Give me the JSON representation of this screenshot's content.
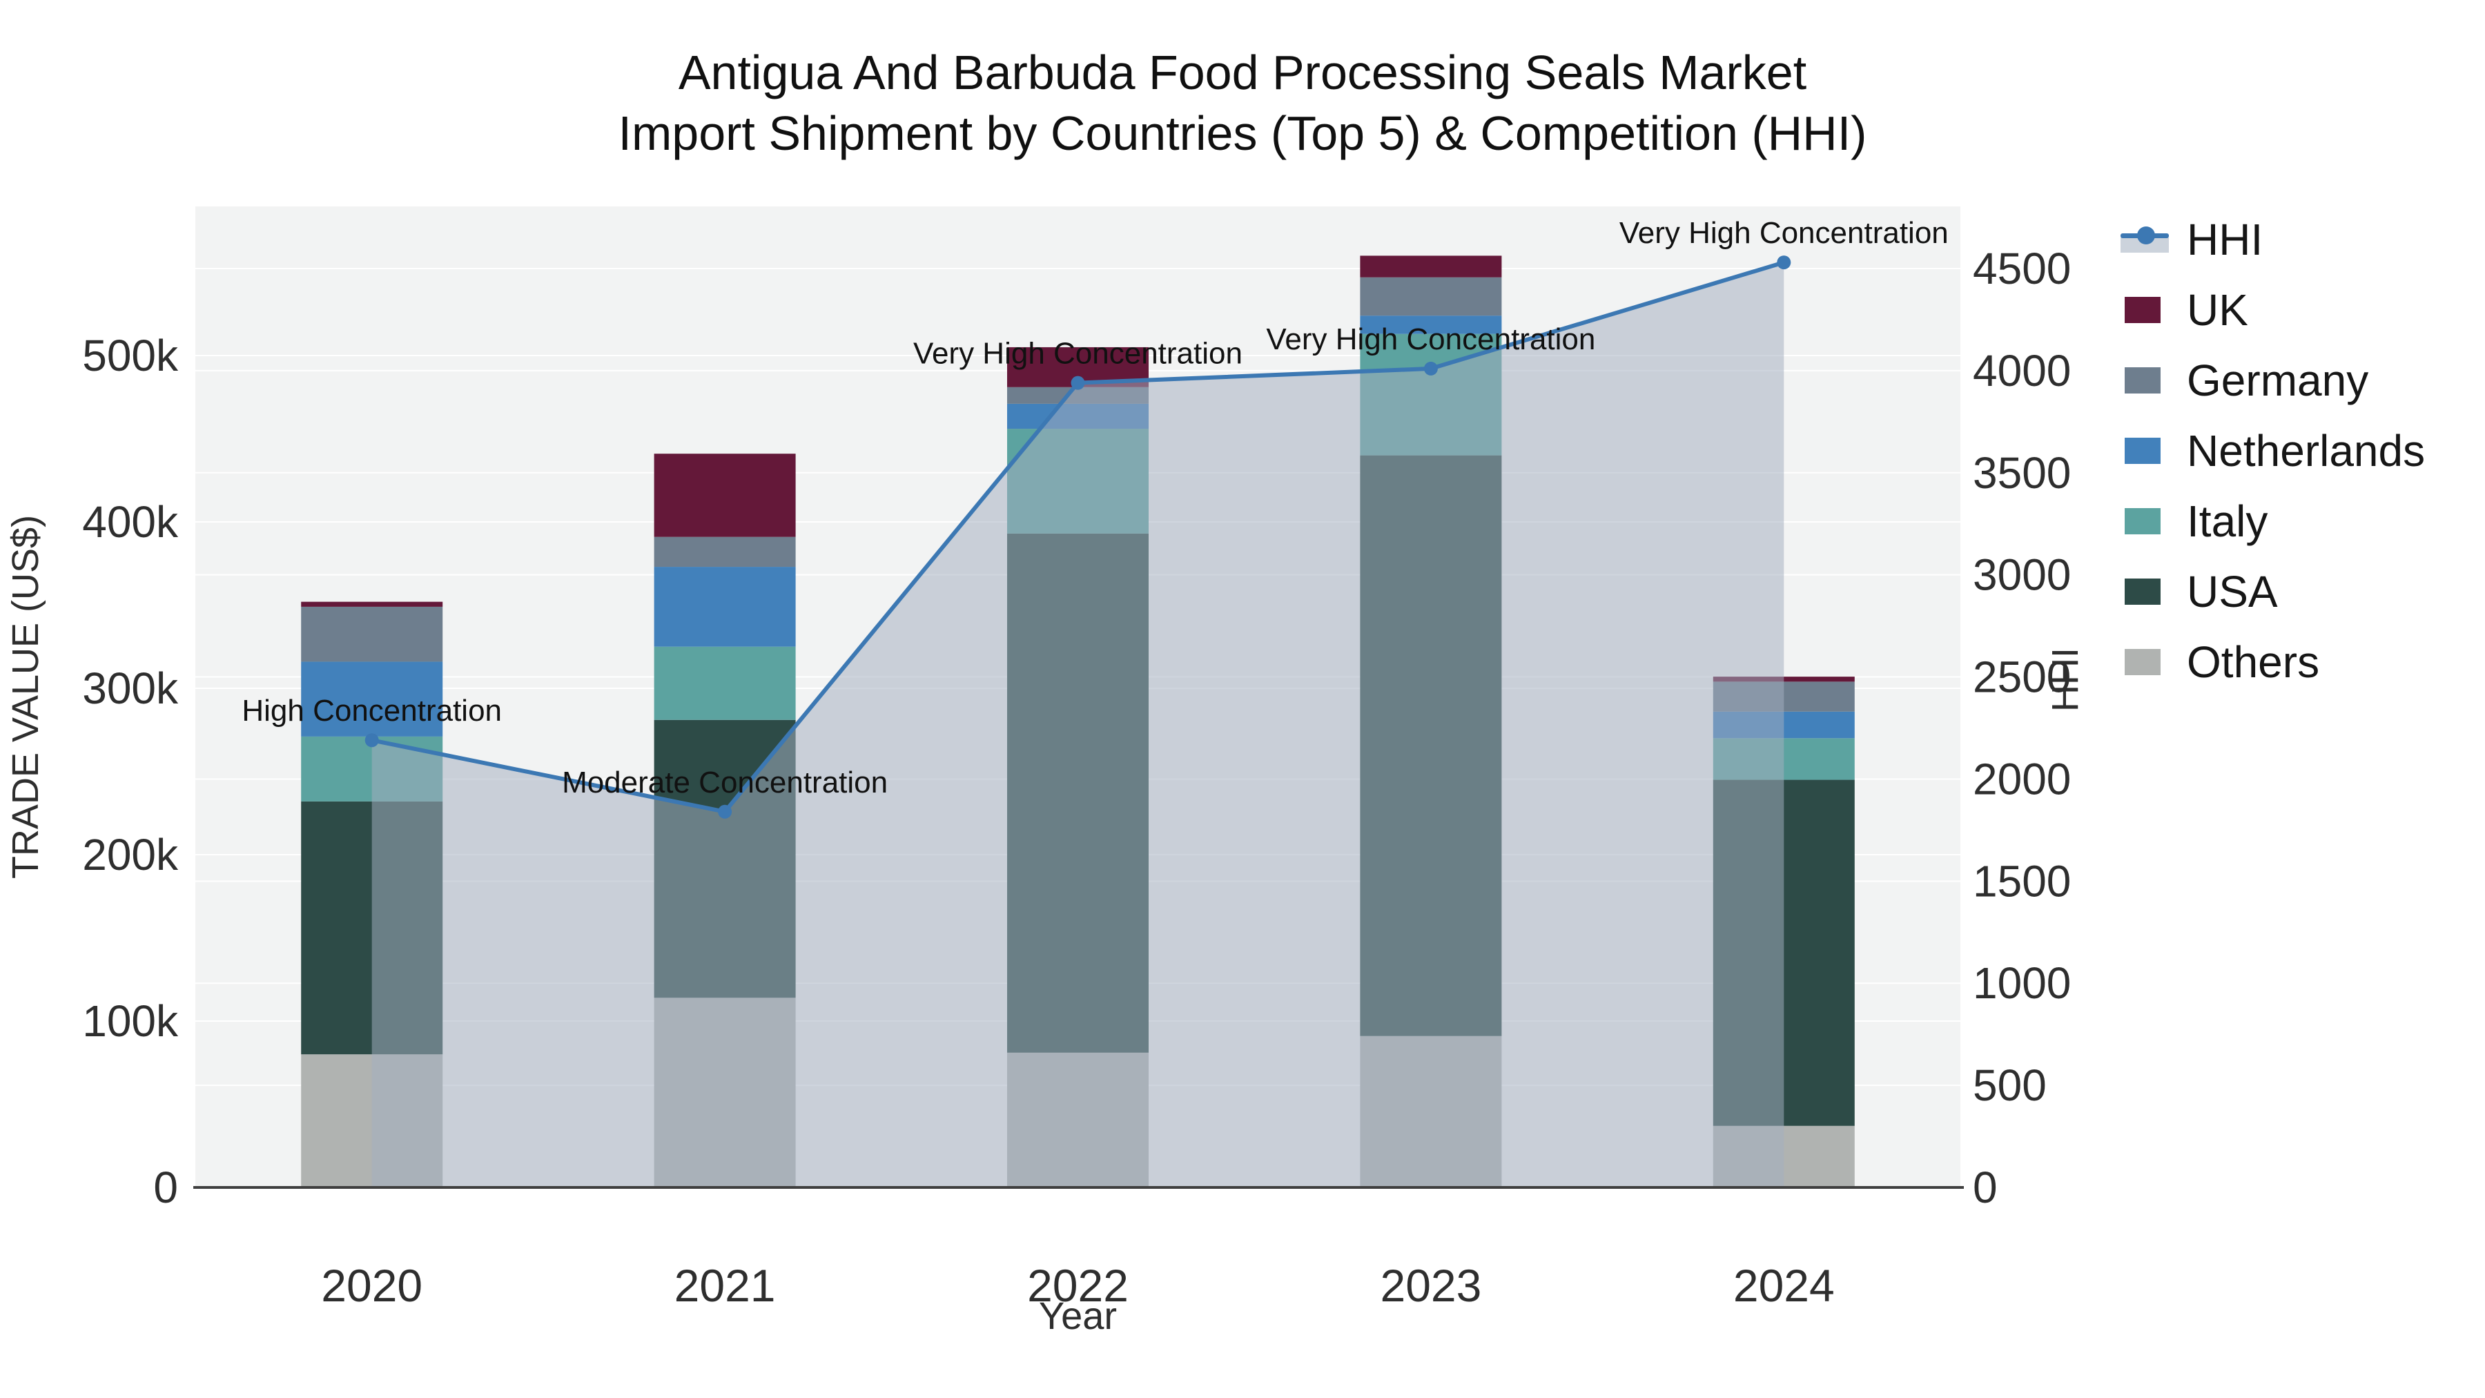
{
  "title": {
    "line1": "Antigua And Barbuda Food Processing Seals Market",
    "line2": "Import Shipment by Countries (Top 5) & Competition (HHI)"
  },
  "axes": {
    "left": {
      "title": "TRADE VALUE (US$)",
      "tick_labels": [
        "0",
        "100k",
        "200k",
        "300k",
        "400k",
        "500k"
      ]
    },
    "right": {
      "title": "HHI",
      "tick_labels": [
        "0",
        "500",
        "1000",
        "1500",
        "2000",
        "2500",
        "3000",
        "3500",
        "4000",
        "4500"
      ]
    },
    "x": {
      "title": "Year"
    }
  },
  "legend_items": [
    {
      "label": "HHI",
      "type": "line",
      "color": "#3c78b3"
    },
    {
      "label": "UK",
      "type": "box",
      "color": "#641839"
    },
    {
      "label": "Germany",
      "type": "box",
      "color": "#6e7e8e"
    },
    {
      "label": "Netherlands",
      "type": "box",
      "color": "#4281bb"
    },
    {
      "label": "Italy",
      "type": "box",
      "color": "#5ca3a0"
    },
    {
      "label": "USA",
      "type": "box",
      "color": "#2d4b47"
    },
    {
      "label": "Others",
      "type": "box",
      "color": "#b0b3b1"
    }
  ],
  "chart_data": {
    "type": "bar",
    "subtype": "stacked-bars-with-line",
    "categories": [
      "2020",
      "2021",
      "2022",
      "2023",
      "2024"
    ],
    "values_unit": "thousand US$",
    "series": [
      {
        "name": "Others",
        "color": "#b0b3b1",
        "values": [
          80,
          114,
          81,
          91,
          37
        ]
      },
      {
        "name": "USA",
        "color": "#2d4b47",
        "values": [
          152,
          167,
          312,
          349,
          208
        ]
      },
      {
        "name": "Italy",
        "color": "#5ca3a0",
        "values": [
          39,
          44,
          63,
          73,
          25
        ]
      },
      {
        "name": "Netherlands",
        "color": "#4281bb",
        "values": [
          45,
          48,
          15,
          11,
          16
        ]
      },
      {
        "name": "Germany",
        "color": "#6e7e8e",
        "values": [
          33,
          18,
          10,
          23,
          18
        ]
      },
      {
        "name": "UK",
        "color": "#641839",
        "values": [
          3,
          50,
          24,
          13,
          3
        ]
      }
    ],
    "bar_totals": [
      352,
      441,
      505,
      560,
      307
    ],
    "line_series": {
      "name": "HHI",
      "color": "#3c78b3",
      "fill_color": "rgba(163,174,191,0.52)",
      "values": [
        2190,
        1840,
        3940,
        4010,
        4530
      ]
    },
    "annotations": [
      {
        "category": "2020",
        "text": "High Concentration"
      },
      {
        "category": "2021",
        "text": "Moderate Concentration"
      },
      {
        "category": "2022",
        "text": "Very High Concentration"
      },
      {
        "category": "2023",
        "text": "Very High Concentration"
      },
      {
        "category": "2024",
        "text": "Very High Concentration"
      }
    ],
    "title": "Antigua And Barbuda Food Processing Seals Market Import Shipment by Countries (Top 5) & Competition (HHI)",
    "xlabel": "Year",
    "ylabel": "TRADE VALUE (US$)",
    "y2label": "HHI",
    "ylim_thousand": [
      0,
      590
    ],
    "y2lim": [
      0,
      4770
    ],
    "left_ticks_thousand": [
      0,
      100,
      200,
      300,
      400,
      500
    ],
    "right_ticks": [
      0,
      500,
      1000,
      1500,
      2000,
      2500,
      3000,
      3500,
      4000,
      4500
    ],
    "grid": true,
    "legend_position": "right"
  },
  "colors": {
    "plot_background": "#f2f3f3",
    "grid_line": "#ffffff",
    "axis_line": "#3f3f3f",
    "tick_text": "#2e2e2e",
    "annotation_text": "#111111"
  }
}
